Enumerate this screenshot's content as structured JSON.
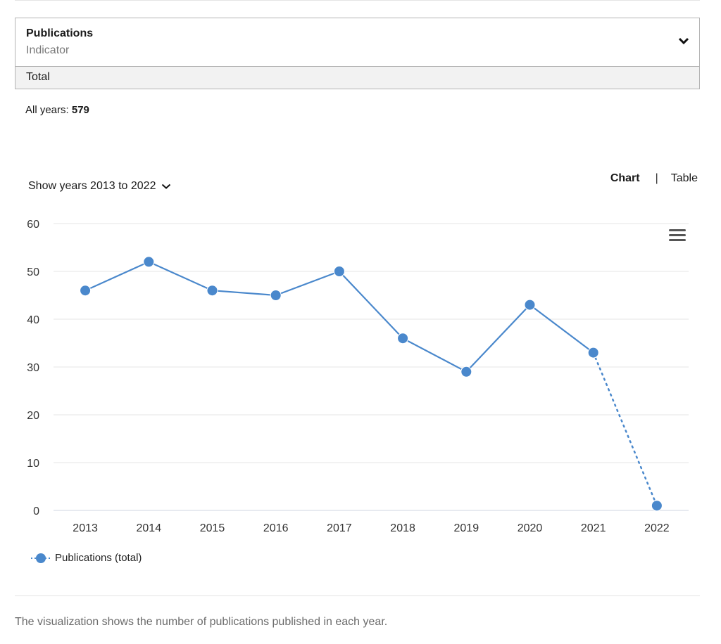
{
  "indicator": {
    "title": "Publications",
    "subtitle": "Indicator",
    "selected_value": "Total"
  },
  "summary": {
    "label": "All years: ",
    "value": "579"
  },
  "year_range": {
    "label": "Show years 2013 to 2022"
  },
  "view_toggle": {
    "chart_label": "Chart",
    "separator": "|",
    "table_label": "Table"
  },
  "caption": "The visualization shows the number of publications published in each year.",
  "colors": {
    "series": "#4a88cc",
    "grid": "#e6e6e6",
    "axis_text": "#333333"
  },
  "icons": {
    "menu": "hamburger-menu-icon",
    "dropdown": "chevron-down-icon"
  },
  "chart_data": {
    "type": "line",
    "title": "",
    "xlabel": "",
    "ylabel": "",
    "categories": [
      "2013",
      "2014",
      "2015",
      "2016",
      "2017",
      "2018",
      "2019",
      "2020",
      "2021",
      "2022"
    ],
    "yticks": [
      "0",
      "10",
      "20",
      "30",
      "40",
      "50",
      "60"
    ],
    "ylim": [
      0,
      60
    ],
    "grid": true,
    "legend_position": "bottom-left",
    "series": [
      {
        "name": "Publications (total)",
        "values": [
          46,
          52,
          46,
          45,
          50,
          36,
          29,
          43,
          33,
          1
        ],
        "incomplete_last_point": true
      }
    ]
  }
}
